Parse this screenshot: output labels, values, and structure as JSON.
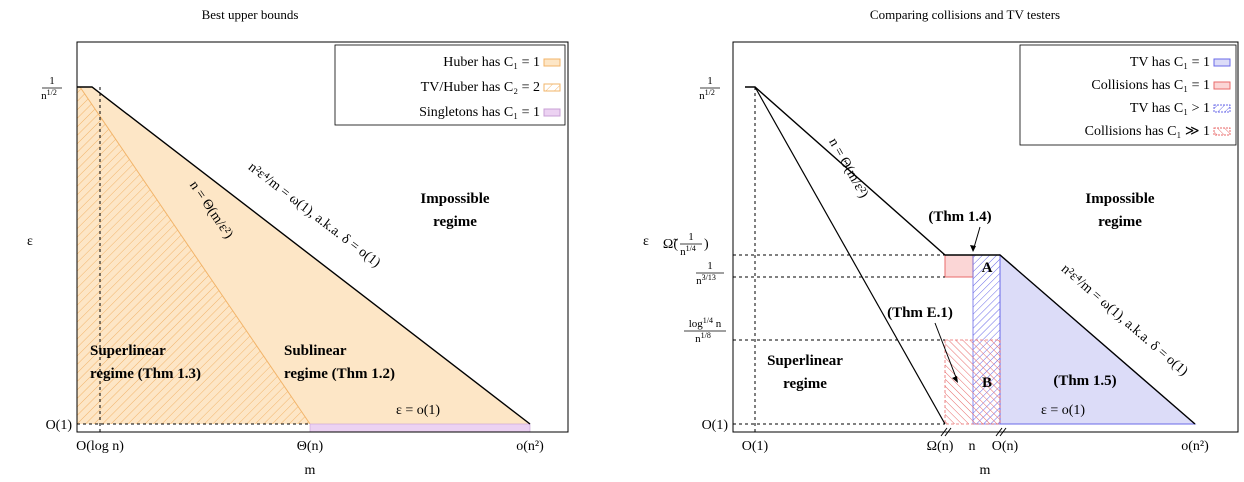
{
  "left": {
    "title": "Best upper bounds",
    "x_label": "m",
    "y_label": "ε",
    "y_ticks": [
      {
        "num": "1",
        "den": "n",
        "den_sup": "1/2"
      },
      {
        "text": "O(1)"
      }
    ],
    "x_ticks": [
      "O(log n)",
      "Θ(n)",
      "o(n²)"
    ],
    "legend": [
      "Huber has C₁ = 1",
      "TV/Huber has C₂ = 2",
      "Singletons has C₁ = 1"
    ],
    "boundary_label": "n²ε⁴/m = ω(1), a.k.a. δ = o(1)",
    "threshold_label": "n = Θ(m/ε²)",
    "regions": [
      "Impossible",
      "regime",
      "Superlinear",
      "regime (Thm 1.3)",
      "Sublinear",
      "regime (Thm 1.2)",
      "ε = o(1)"
    ]
  },
  "right": {
    "title": "Comparing collisions and TV testers",
    "x_label": "m",
    "y_label": "ε",
    "y_ticks": [
      {
        "num": "1",
        "den": "n",
        "den_sup": "1/2"
      },
      {
        "prefix": "Ω̃(",
        "num": "1",
        "den": "n",
        "den_sup": "1/4",
        "suffix": ")"
      },
      {
        "num": "1",
        "den": "n",
        "den_sup": "3/13"
      },
      {
        "num": "log",
        "num_sup": "1/4",
        "num_tail": " n",
        "den": "n",
        "den_sup": "1/8"
      },
      {
        "text": "O(1)"
      }
    ],
    "x_ticks": [
      "O(1)",
      "Ω(n)",
      "n",
      "O(n)",
      "o(n²)"
    ],
    "legend": [
      "TV has C₁ = 1",
      "Collisions has C₁ = 1",
      "TV has C₁ > 1",
      "Collisions has C₁ ≫ 1"
    ],
    "boundary_label": "n²ε⁴/m = ω(1), a.k.a. δ = o(1)",
    "threshold_label": "n = Θ(m/ε²)",
    "regions": [
      "Impossible",
      "regime",
      "Superlinear",
      "regime",
      "(Thm 1.4)",
      "(Thm E.1)",
      "(Thm 1.5)",
      "A",
      "B",
      "ε = o(1)"
    ]
  }
}
